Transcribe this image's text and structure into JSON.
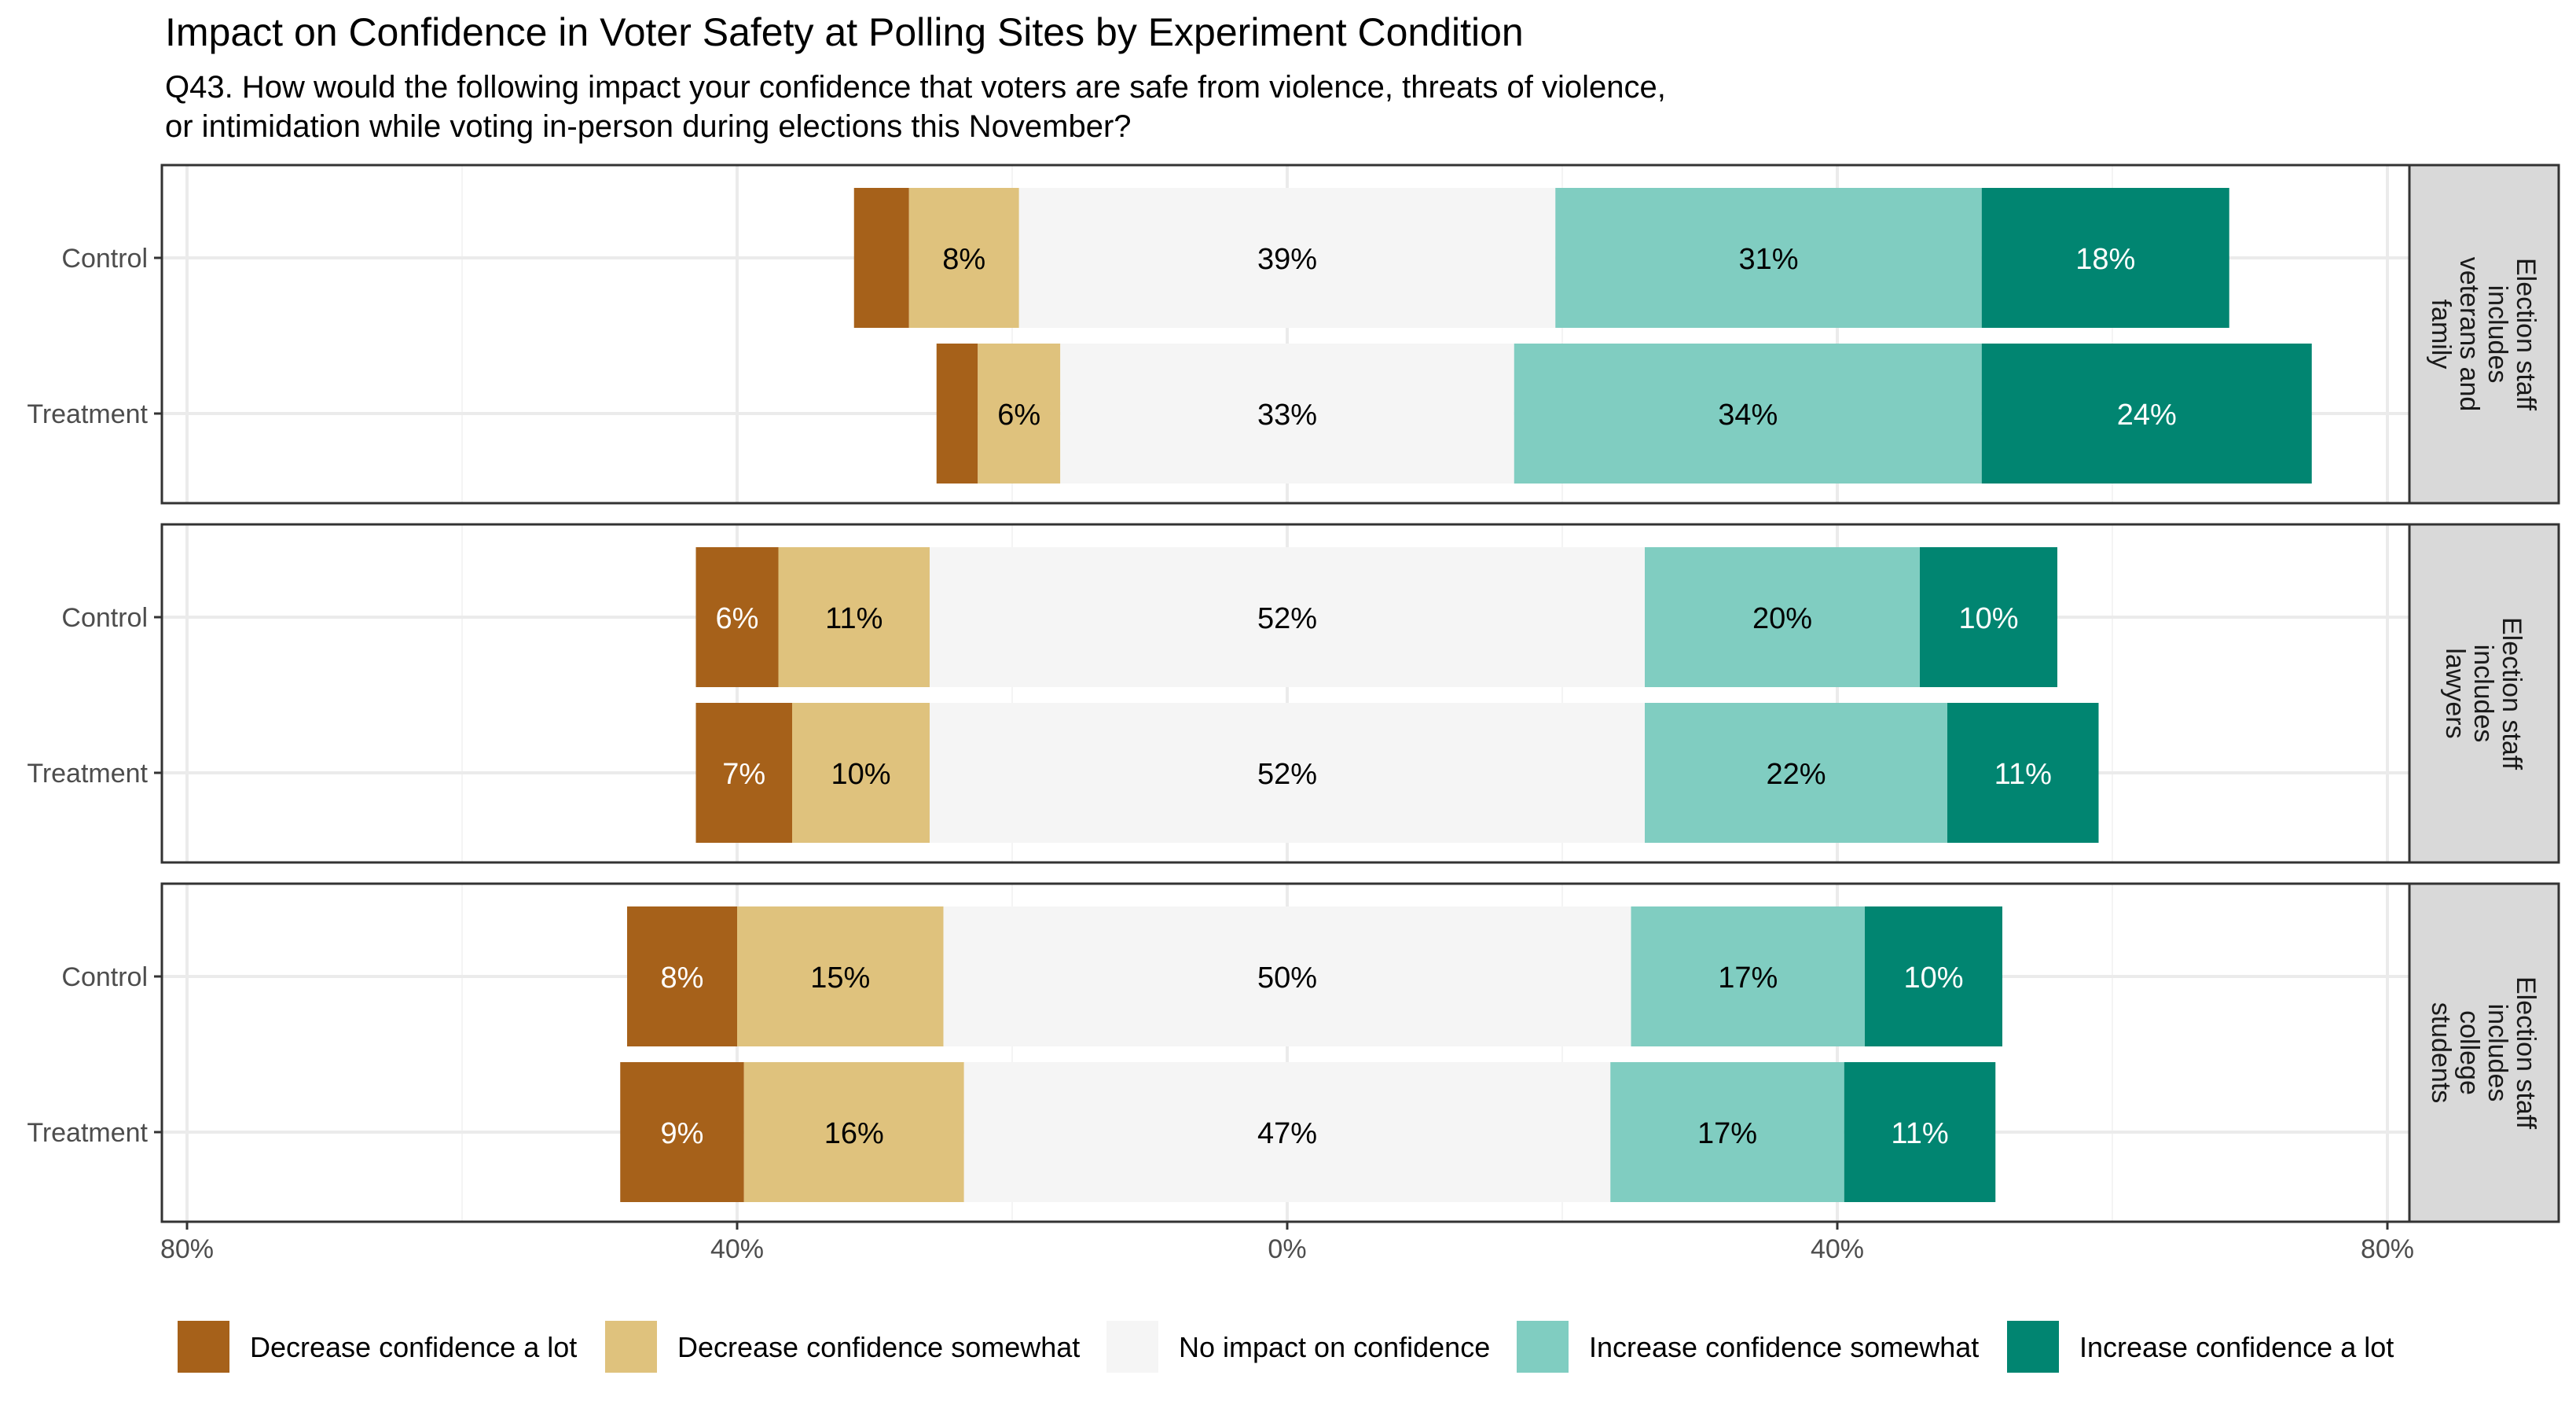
{
  "chart_data": {
    "type": "bar",
    "orientation": "horizontal",
    "stacked": "diverging",
    "title": "Impact on Confidence in Voter Safety at Polling Sites by Experiment Condition",
    "subtitle": "Q43. How would the following impact your confidence that voters are safe from violence, threats of violence,\nor intimidation while voting in-person during elections this November?",
    "xlim": [
      -80,
      80
    ],
    "x_ticks": [
      -80,
      -40,
      0,
      40,
      80
    ],
    "x_tick_labels": [
      "80%",
      "40%",
      "0%",
      "40%",
      "80%"
    ],
    "grid": true,
    "legend_position": "bottom",
    "categories": [
      "Decrease confidence a lot",
      "Decrease confidence somewhat",
      "No impact on confidence",
      "Increase confidence somewhat",
      "Increase confidence a lot"
    ],
    "colors": [
      "#a6611a",
      "#dfc27d",
      "#f5f5f5",
      "#80cdc1",
      "#018571"
    ],
    "label_colors": [
      "#ffffff",
      "#000000",
      "#000000",
      "#000000",
      "#ffffff"
    ],
    "panels": [
      {
        "strip": "Election staff\nincludes\nveterans and\nfamily",
        "rows": [
          {
            "label": "Control",
            "values": [
              4,
              8,
              39,
              31,
              18
            ],
            "labels": [
              "",
              "8%",
              "39%",
              "31%",
              "18%"
            ]
          },
          {
            "label": "Treatment",
            "values": [
              3,
              6,
              33,
              34,
              24
            ],
            "labels": [
              "",
              "6%",
              "33%",
              "34%",
              "24%"
            ]
          }
        ]
      },
      {
        "strip": "Election staff\nincludes\nlawyers",
        "rows": [
          {
            "label": "Control",
            "values": [
              6,
              11,
              52,
              20,
              10
            ],
            "labels": [
              "6%",
              "11%",
              "52%",
              "20%",
              "10%"
            ]
          },
          {
            "label": "Treatment",
            "values": [
              7,
              10,
              52,
              22,
              11
            ],
            "labels": [
              "7%",
              "10%",
              "52%",
              "22%",
              "11%"
            ]
          }
        ]
      },
      {
        "strip": "Election staff\nincludes\ncollege\nstudents",
        "rows": [
          {
            "label": "Control",
            "values": [
              8,
              15,
              50,
              17,
              10
            ],
            "labels": [
              "8%",
              "15%",
              "50%",
              "17%",
              "10%"
            ]
          },
          {
            "label": "Treatment",
            "values": [
              9,
              16,
              47,
              17,
              11
            ],
            "labels": [
              "9%",
              "16%",
              "47%",
              "17%",
              "11%"
            ]
          }
        ]
      }
    ]
  }
}
